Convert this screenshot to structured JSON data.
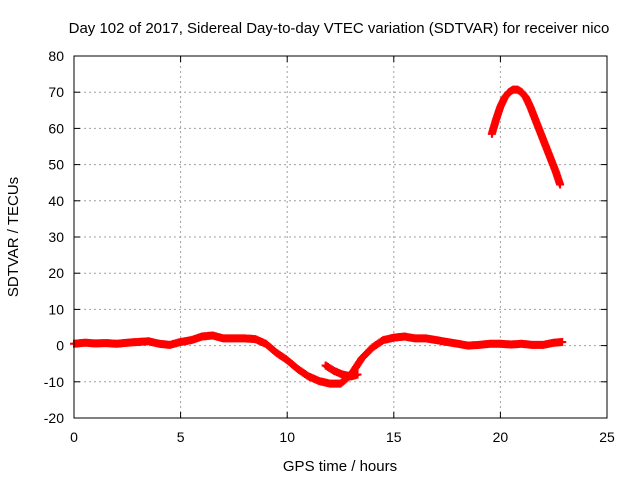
{
  "chart_data": {
    "type": "scatter",
    "title": "Day 102 of 2017, Sidereal Day-to-day VTEC variation (SDTVAR) for receiver nico",
    "xlabel": "GPS time / hours",
    "ylabel": "SDTVAR / TECUs",
    "xlim": [
      0,
      25
    ],
    "ylim": [
      -20,
      80
    ],
    "x_ticks": [
      0,
      5,
      10,
      15,
      20,
      25
    ],
    "y_ticks": [
      -20,
      -10,
      0,
      10,
      20,
      30,
      40,
      50,
      60,
      70,
      80
    ],
    "grid": true,
    "marker": "plus",
    "series": [
      {
        "name": "SDTVAR",
        "color": "#ff0000",
        "segments": [
          {
            "x": [
              0,
              0.5,
              1,
              1.5,
              2,
              2.5,
              3,
              3.5,
              4,
              4.5,
              5,
              5.5,
              6,
              6.5,
              7,
              7.5,
              8,
              8.5,
              9,
              9.5,
              10,
              10.5,
              11,
              11.5,
              12,
              12.5,
              13,
              13.5,
              14,
              14.5,
              15,
              15.5,
              16,
              16.5,
              17,
              17.5,
              18,
              18.5,
              19,
              19.5,
              20,
              20.5,
              21,
              21.5,
              22,
              22.5,
              22.9
            ],
            "y": [
              0.5,
              0.8,
              0.6,
              0.7,
              0.5,
              0.8,
              1.0,
              1.2,
              0.5,
              0.2,
              1.0,
              1.5,
              2.5,
              2.8,
              2.0,
              2.0,
              2.0,
              1.8,
              0.5,
              -2,
              -4,
              -6.5,
              -8.5,
              -9.8,
              -10.5,
              -10.5,
              -8,
              -3.5,
              -0.5,
              1.5,
              2.2,
              2.5,
              2.0,
              2.0,
              1.5,
              1.0,
              0.5,
              0.0,
              0.2,
              0.5,
              0.5,
              0.3,
              0.5,
              0.2,
              0.2,
              0.8,
              1.0
            ]
          },
          {
            "x": [
              11.8,
              12.2,
              12.6,
              13.0,
              13.3
            ],
            "y": [
              -5.5,
              -7,
              -8,
              -8.5,
              -8
            ]
          },
          {
            "x": [
              19.6,
              19.8,
              20.0,
              20.2,
              20.4,
              20.6,
              20.8,
              21.0,
              21.2,
              21.4,
              21.6,
              21.8,
              22.0,
              22.2,
              22.4,
              22.6,
              22.8
            ],
            "y": [
              58.5,
              62.5,
              66,
              68.5,
              70,
              70.7,
              70.7,
              70,
              68.5,
              66,
              63,
              60,
              57,
              54,
              51,
              48,
              44.5
            ]
          }
        ]
      }
    ]
  }
}
